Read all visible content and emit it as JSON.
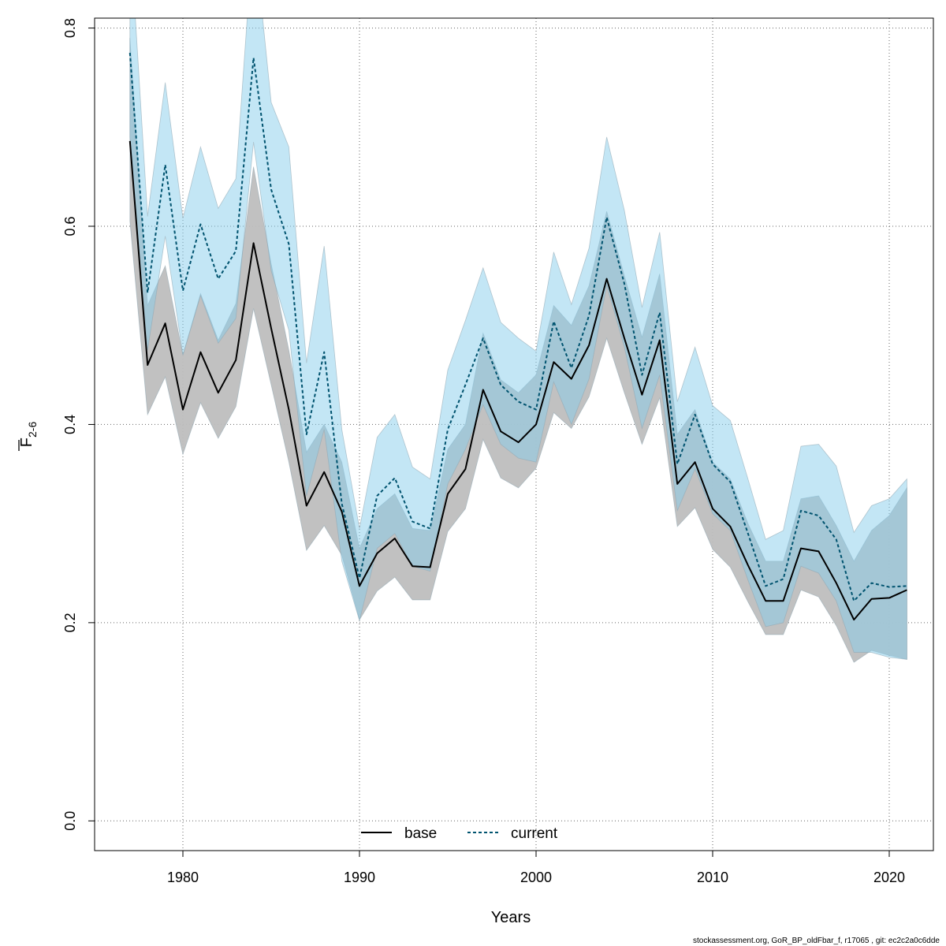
{
  "colors": {
    "base_band": "#bebebe",
    "current_band": "#87ceeb",
    "base_line": "#000000",
    "current_line": "#00536f"
  },
  "chart_data": {
    "type": "line",
    "xlabel": "Years",
    "ylabel": "F",
    "ylabel_subscript": "2-6",
    "xlim": [
      1975,
      2022.5
    ],
    "ylim": [
      -0.03,
      0.81
    ],
    "xticks": [
      1980,
      1990,
      2000,
      2010,
      2020
    ],
    "yticks": [
      0.0,
      0.2,
      0.4,
      0.6,
      0.8
    ],
    "ytick_labels": [
      "0.0",
      "0.2",
      "0.4",
      "0.6",
      "0.8"
    ],
    "grid": true,
    "legend_position": "bottom-center",
    "x": [
      1977,
      1978,
      1979,
      1980,
      1981,
      1982,
      1983,
      1984,
      1985,
      1986,
      1987,
      1988,
      1989,
      1990,
      1991,
      1992,
      1993,
      1994,
      1995,
      1996,
      1997,
      1998,
      1999,
      2000,
      2001,
      2002,
      2003,
      2004,
      2005,
      2006,
      2007,
      2008,
      2009,
      2010,
      2011,
      2012,
      2013,
      2014,
      2015,
      2016,
      2017,
      2018,
      2019,
      2020,
      2021
    ],
    "series": [
      {
        "name": "base",
        "style": "solid",
        "values": [
          0.686,
          0.46,
          0.502,
          0.415,
          0.473,
          0.432,
          0.465,
          0.583,
          0.497,
          0.415,
          0.318,
          0.352,
          0.312,
          0.237,
          0.27,
          0.285,
          0.257,
          0.256,
          0.33,
          0.355,
          0.435,
          0.393,
          0.382,
          0.4,
          0.463,
          0.446,
          0.48,
          0.547,
          0.487,
          0.43,
          0.485,
          0.34,
          0.362,
          0.315,
          0.297,
          0.258,
          0.222,
          0.222,
          0.275,
          0.272,
          0.24,
          0.203,
          0.224,
          0.225,
          0.233
        ],
        "lower": [
          0.605,
          0.41,
          0.448,
          0.37,
          0.422,
          0.386,
          0.418,
          0.517,
          0.44,
          0.362,
          0.273,
          0.298,
          0.268,
          0.203,
          0.232,
          0.246,
          0.223,
          0.223,
          0.292,
          0.315,
          0.385,
          0.346,
          0.336,
          0.356,
          0.412,
          0.396,
          0.428,
          0.487,
          0.432,
          0.38,
          0.427,
          0.297,
          0.316,
          0.274,
          0.256,
          0.221,
          0.188,
          0.188,
          0.233,
          0.226,
          0.197,
          0.16,
          0.172,
          0.167,
          0.163
        ],
        "upper": [
          0.79,
          0.52,
          0.56,
          0.47,
          0.532,
          0.485,
          0.522,
          0.66,
          0.562,
          0.475,
          0.372,
          0.4,
          0.362,
          0.275,
          0.315,
          0.33,
          0.295,
          0.293,
          0.375,
          0.4,
          0.492,
          0.445,
          0.432,
          0.45,
          0.52,
          0.5,
          0.54,
          0.615,
          0.55,
          0.488,
          0.552,
          0.39,
          0.415,
          0.362,
          0.345,
          0.3,
          0.262,
          0.262,
          0.325,
          0.328,
          0.298,
          0.262,
          0.293,
          0.308,
          0.336
        ]
      },
      {
        "name": "current",
        "style": "dashed",
        "values": [
          0.775,
          0.533,
          0.662,
          0.535,
          0.602,
          0.547,
          0.575,
          0.77,
          0.637,
          0.582,
          0.39,
          0.473,
          0.32,
          0.245,
          0.328,
          0.346,
          0.302,
          0.295,
          0.395,
          0.44,
          0.487,
          0.44,
          0.423,
          0.415,
          0.504,
          0.457,
          0.51,
          0.609,
          0.542,
          0.45,
          0.513,
          0.36,
          0.41,
          0.36,
          0.342,
          0.29,
          0.237,
          0.244,
          0.313,
          0.308,
          0.284,
          0.222,
          0.24,
          0.236,
          0.237
        ],
        "lower": [
          0.69,
          0.475,
          0.59,
          0.47,
          0.53,
          0.482,
          0.507,
          0.685,
          0.555,
          0.495,
          0.328,
          0.395,
          0.262,
          0.202,
          0.275,
          0.29,
          0.257,
          0.252,
          0.34,
          0.375,
          0.42,
          0.38,
          0.366,
          0.362,
          0.443,
          0.4,
          0.446,
          0.54,
          0.478,
          0.396,
          0.45,
          0.313,
          0.355,
          0.31,
          0.293,
          0.243,
          0.196,
          0.2,
          0.257,
          0.25,
          0.222,
          0.17,
          0.17,
          0.165,
          0.163
        ],
        "upper": [
          0.9,
          0.61,
          0.745,
          0.608,
          0.68,
          0.618,
          0.648,
          0.9,
          0.725,
          0.68,
          0.462,
          0.58,
          0.395,
          0.295,
          0.387,
          0.41,
          0.357,
          0.345,
          0.455,
          0.505,
          0.558,
          0.503,
          0.487,
          0.474,
          0.574,
          0.521,
          0.578,
          0.69,
          0.616,
          0.518,
          0.594,
          0.423,
          0.478,
          0.419,
          0.404,
          0.345,
          0.284,
          0.293,
          0.378,
          0.38,
          0.358,
          0.291,
          0.318,
          0.325,
          0.345
        ]
      }
    ]
  },
  "footer": {
    "text": "stockassessment.org, GoR_BP_oldFbar_f, r17065 , git: ec2c2a0c6dde"
  }
}
